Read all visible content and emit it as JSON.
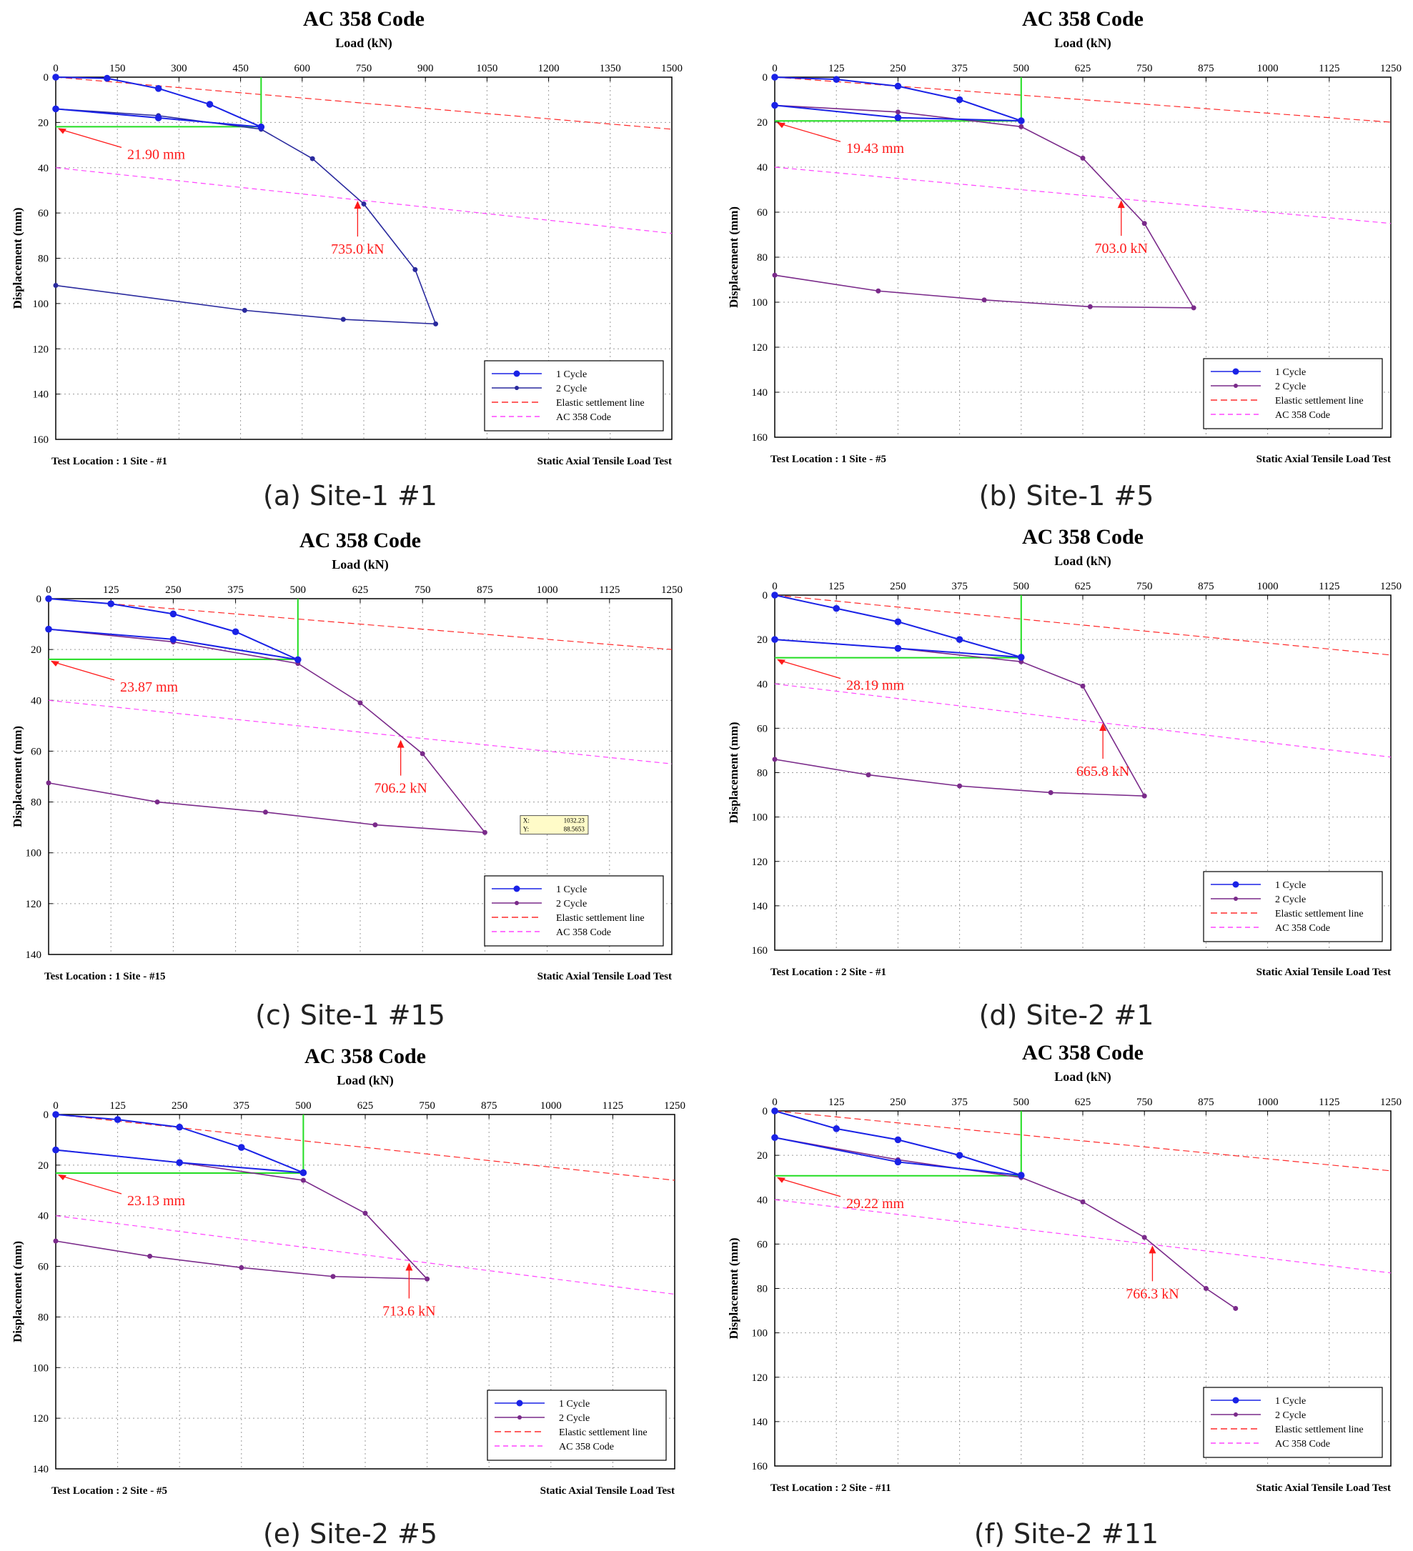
{
  "colors": {
    "cycle1": "#1a22e6",
    "cycle1_lightline": "#3b40ee",
    "cycle2_purple": "#7a2a8a",
    "cycle2_blue": "#2a2a9e",
    "elastic": "#ff2a2a",
    "ac358": "#ff44ff",
    "green": "#22dd22",
    "annot": "#ff1a1a"
  },
  "chart_data": [
    {
      "id": "a",
      "type": "line",
      "title": "AC 358 Code",
      "xlabel": "Load (kN)",
      "ylabel": "Displacement (mm)",
      "xlim": [
        0,
        1500
      ],
      "ylim": [
        0,
        160
      ],
      "xticks": [
        0,
        150,
        300,
        450,
        600,
        750,
        900,
        1050,
        1200,
        1350,
        1500
      ],
      "yticks": [
        0,
        20,
        40,
        60,
        80,
        100,
        120,
        140,
        160
      ],
      "cycle2_style": "blue",
      "series": [
        {
          "name": "1 Cycle",
          "points": [
            [
              0,
              0
            ],
            [
              125,
              0.5
            ],
            [
              250,
              5
            ],
            [
              375,
              12
            ],
            [
              500,
              22
            ],
            [
              250,
              18
            ],
            [
              0,
              14
            ]
          ]
        },
        {
          "name": "2 Cycle",
          "points": [
            [
              0,
              14
            ],
            [
              250,
              17
            ],
            [
              500,
              23
            ],
            [
              625,
              36
            ],
            [
              750,
              56
            ],
            [
              875,
              85
            ],
            [
              925,
              109
            ],
            [
              700,
              107
            ],
            [
              460,
              103
            ],
            [
              0,
              92
            ]
          ]
        }
      ],
      "elastic_line": [
        [
          0,
          0
        ],
        [
          1500,
          23
        ]
      ],
      "ac358_line": [
        [
          0,
          40
        ],
        [
          1500,
          69
        ]
      ],
      "green_lines": {
        "x": 500,
        "y": 21.9
      },
      "annotations": [
        {
          "text": "21.90 mm",
          "kind": "displacement"
        },
        {
          "text": "735.0 kN",
          "kind": "load",
          "x": 735,
          "y": 54
        }
      ],
      "legend": [
        "1 Cycle",
        "2 Cycle",
        "Elastic settlement line",
        "AC 358 Code"
      ],
      "footer_left": "Test Location : 1 Site - #1",
      "footer_right": "Static Axial Tensile Load Test",
      "caption": "(a) Site-1 #1"
    },
    {
      "id": "b",
      "type": "line",
      "title": "AC 358 Code",
      "xlabel": "Load (kN)",
      "ylabel": "Displacement (mm)",
      "xlim": [
        0,
        1250
      ],
      "ylim": [
        0,
        160
      ],
      "xticks": [
        0,
        125,
        250,
        375,
        500,
        625,
        750,
        875,
        1000,
        1125,
        1250
      ],
      "yticks": [
        0,
        20,
        40,
        60,
        80,
        100,
        120,
        140,
        160
      ],
      "cycle2_style": "purple",
      "series": [
        {
          "name": "1 Cycle",
          "points": [
            [
              0,
              0
            ],
            [
              125,
              1
            ],
            [
              250,
              4
            ],
            [
              375,
              10
            ],
            [
              500,
              19.4
            ],
            [
              250,
              18
            ],
            [
              0,
              12.5
            ]
          ]
        },
        {
          "name": "2 Cycle",
          "points": [
            [
              0,
              12.5
            ],
            [
              250,
              15.5
            ],
            [
              500,
              22
            ],
            [
              625,
              36
            ],
            [
              750,
              65
            ],
            [
              850,
              102.5
            ],
            [
              640,
              102
            ],
            [
              425,
              99
            ],
            [
              210,
              95
            ],
            [
              0,
              88
            ]
          ]
        }
      ],
      "elastic_line": [
        [
          0,
          0
        ],
        [
          1250,
          20
        ]
      ],
      "ac358_line": [
        [
          0,
          40
        ],
        [
          1250,
          65
        ]
      ],
      "green_lines": {
        "x": 500,
        "y": 19.43
      },
      "annotations": [
        {
          "text": "19.43 mm",
          "kind": "displacement"
        },
        {
          "text": "703.0 kN",
          "kind": "load",
          "x": 703,
          "y": 54
        }
      ],
      "legend": [
        "1 Cycle",
        "2 Cycle",
        "Elastic settlement line",
        "AC 358 Code"
      ],
      "footer_left": "Test Location : 1 Site - #5",
      "footer_right": "Static Axial Tensile Load Test",
      "caption": "(b) Site-1 #5"
    },
    {
      "id": "c",
      "type": "line",
      "title": "AC 358 Code",
      "xlabel": "Load (kN)",
      "ylabel": "Displacement (mm)",
      "xlim": [
        0,
        1250
      ],
      "ylim": [
        0,
        140
      ],
      "xticks": [
        0,
        125,
        250,
        375,
        500,
        625,
        750,
        875,
        1000,
        1125,
        1250
      ],
      "yticks": [
        0,
        20,
        40,
        60,
        80,
        100,
        120,
        140
      ],
      "cycle2_style": "purple",
      "series": [
        {
          "name": "1 Cycle",
          "points": [
            [
              0,
              0
            ],
            [
              125,
              2
            ],
            [
              250,
              6
            ],
            [
              375,
              13
            ],
            [
              500,
              24
            ],
            [
              250,
              16
            ],
            [
              0,
              12
            ]
          ]
        },
        {
          "name": "2 Cycle",
          "points": [
            [
              0,
              12
            ],
            [
              250,
              17
            ],
            [
              500,
              25.5
            ],
            [
              625,
              41
            ],
            [
              750,
              61
            ],
            [
              875,
              92
            ],
            [
              655,
              89
            ],
            [
              435,
              84
            ],
            [
              218,
              80
            ],
            [
              0,
              72.5
            ]
          ]
        }
      ],
      "elastic_line": [
        [
          0,
          0
        ],
        [
          1250,
          20
        ]
      ],
      "ac358_line": [
        [
          0,
          40
        ],
        [
          1250,
          65
        ]
      ],
      "green_lines": {
        "x": 500,
        "y": 23.87
      },
      "annotations": [
        {
          "text": "23.87 mm",
          "kind": "displacement"
        },
        {
          "text": "706.2 kN",
          "kind": "load",
          "x": 706.2,
          "y": 55
        }
      ],
      "tooltip": {
        "x_label": "X:",
        "x_value": "1032.23",
        "y_label": "Y:",
        "y_value": "88.5653",
        "at": [
          1032,
          98
        ]
      },
      "legend": [
        "1 Cycle",
        "2 Cycle",
        "Elastic settlement line",
        "AC 358 Code"
      ],
      "footer_left": "Test Location : 1 Site - #15",
      "footer_right": "Static Axial Tensile Load Test",
      "caption": "(c) Site-1 #15"
    },
    {
      "id": "d",
      "type": "line",
      "title": "AC 358 Code",
      "xlabel": "Load (kN)",
      "ylabel": "Displacement (mm)",
      "xlim": [
        0,
        1250
      ],
      "ylim": [
        0,
        160
      ],
      "xticks": [
        0,
        125,
        250,
        375,
        500,
        625,
        750,
        875,
        1000,
        1125,
        1250
      ],
      "yticks": [
        0,
        20,
        40,
        60,
        80,
        100,
        120,
        140,
        160
      ],
      "cycle2_style": "purple",
      "series": [
        {
          "name": "1 Cycle",
          "points": [
            [
              0,
              0
            ],
            [
              125,
              6
            ],
            [
              250,
              12
            ],
            [
              375,
              20
            ],
            [
              500,
              28
            ],
            [
              250,
              24
            ],
            [
              0,
              20
            ]
          ]
        },
        {
          "name": "2 Cycle",
          "points": [
            [
              0,
              20
            ],
            [
              250,
              24
            ],
            [
              500,
              30
            ],
            [
              625,
              41
            ],
            [
              750,
              90.5
            ],
            [
              560,
              89
            ],
            [
              375,
              86
            ],
            [
              190,
              81
            ],
            [
              0,
              74
            ]
          ]
        }
      ],
      "elastic_line": [
        [
          0,
          0
        ],
        [
          1250,
          27
        ]
      ],
      "ac358_line": [
        [
          0,
          40
        ],
        [
          1250,
          73
        ]
      ],
      "green_lines": {
        "x": 500,
        "y": 28.19
      },
      "annotations": [
        {
          "text": "28.19 mm",
          "kind": "displacement"
        },
        {
          "text": "665.8 kN",
          "kind": "load",
          "x": 665.8,
          "y": 57
        }
      ],
      "legend": [
        "1 Cycle",
        "2 Cycle",
        "Elastic settlement line",
        "AC 358 Code"
      ],
      "footer_left": "Test Location : 2 Site - #1",
      "footer_right": "Static Axial Tensile Load Test",
      "caption": "(d) Site-2 #1"
    },
    {
      "id": "e",
      "type": "line",
      "title": "AC 358 Code",
      "xlabel": "Load (kN)",
      "ylabel": "Displacement (mm)",
      "xlim": [
        0,
        1250
      ],
      "ylim": [
        0,
        140
      ],
      "xticks": [
        0,
        125,
        250,
        375,
        500,
        625,
        750,
        875,
        1000,
        1125,
        1250
      ],
      "yticks": [
        0,
        20,
        40,
        60,
        80,
        100,
        120,
        140
      ],
      "cycle2_style": "purple",
      "series": [
        {
          "name": "1 Cycle",
          "points": [
            [
              0,
              0
            ],
            [
              125,
              2
            ],
            [
              250,
              5
            ],
            [
              375,
              13
            ],
            [
              500,
              23
            ],
            [
              250,
              19
            ],
            [
              0,
              14
            ]
          ]
        },
        {
          "name": "2 Cycle",
          "points": [
            [
              0,
              14
            ],
            [
              250,
              19
            ],
            [
              500,
              26
            ],
            [
              625,
              39
            ],
            [
              750,
              65
            ],
            [
              560,
              64
            ],
            [
              375,
              60.5
            ],
            [
              190,
              56
            ],
            [
              0,
              50
            ]
          ]
        }
      ],
      "elastic_line": [
        [
          0,
          0
        ],
        [
          1250,
          26
        ]
      ],
      "ac358_line": [
        [
          0,
          40
        ],
        [
          1250,
          71
        ]
      ],
      "green_lines": {
        "x": 500,
        "y": 23.13
      },
      "annotations": [
        {
          "text": "23.13 mm",
          "kind": "displacement"
        },
        {
          "text": "713.6 kN",
          "kind": "load",
          "x": 713.6,
          "y": 58
        }
      ],
      "legend": [
        "1 Cycle",
        "2 Cycle",
        "Elastic settlement line",
        "AC 358 Code"
      ],
      "footer_left": "Test Location : 2 Site - #5",
      "footer_right": "Static Axial Tensile Load Test",
      "caption": "(e) Site-2 #5"
    },
    {
      "id": "f",
      "type": "line",
      "title": "AC 358 Code",
      "xlabel": "Load (kN)",
      "ylabel": "Displacement (mm)",
      "xlim": [
        0,
        1250
      ],
      "ylim": [
        0,
        160
      ],
      "xticks": [
        0,
        125,
        250,
        375,
        500,
        625,
        750,
        875,
        1000,
        1125,
        1250
      ],
      "yticks": [
        0,
        20,
        40,
        60,
        80,
        100,
        120,
        140,
        160
      ],
      "cycle2_style": "purple",
      "series": [
        {
          "name": "1 Cycle",
          "points": [
            [
              0,
              0
            ],
            [
              125,
              8
            ],
            [
              250,
              13
            ],
            [
              375,
              20
            ],
            [
              500,
              29
            ],
            [
              250,
              23
            ],
            [
              0,
              12
            ]
          ]
        },
        {
          "name": "2 Cycle",
          "points": [
            [
              0,
              12
            ],
            [
              250,
              22
            ],
            [
              500,
              30
            ],
            [
              625,
              41
            ],
            [
              750,
              57
            ],
            [
              875,
              80
            ],
            [
              935,
              89
            ]
          ]
        }
      ],
      "elastic_line": [
        [
          0,
          0
        ],
        [
          1250,
          27
        ]
      ],
      "ac358_line": [
        [
          0,
          40
        ],
        [
          1250,
          73
        ]
      ],
      "green_lines": {
        "x": 500,
        "y": 29.22
      },
      "annotations": [
        {
          "text": "29.22 mm",
          "kind": "displacement"
        },
        {
          "text": "766.3 kN",
          "kind": "load",
          "x": 766.3,
          "y": 60
        }
      ],
      "legend": [
        "1 Cycle",
        "2 Cycle",
        "Elastic settlement line",
        "AC 358 Code"
      ],
      "footer_left": "Test Location : 2 Site - #11",
      "footer_right": "Static Axial Tensile Load Test",
      "caption": "(f) Site-2 #11"
    }
  ]
}
